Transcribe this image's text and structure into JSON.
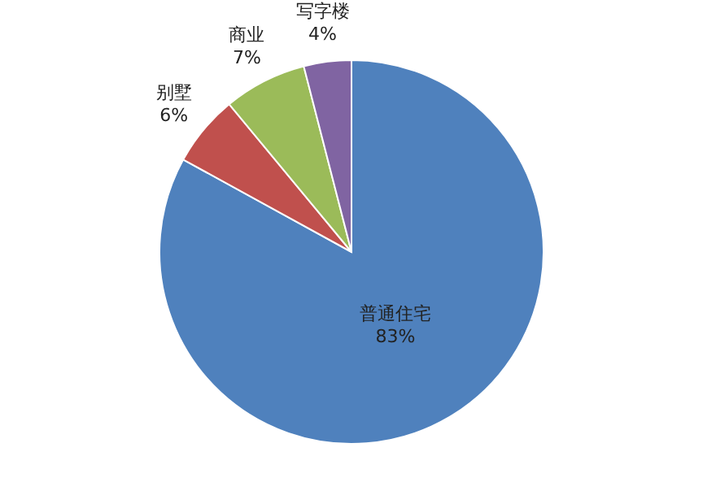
{
  "chart_data": {
    "type": "pie",
    "categories": [
      "普通住宅",
      "别墅",
      "商业",
      "写字楼"
    ],
    "values": [
      83,
      6,
      7,
      4
    ],
    "colors": [
      "#4f81bd",
      "#c0504d",
      "#9bbb59",
      "#8064a2"
    ],
    "value_labels": [
      "83%",
      "6%",
      "7%",
      "4%"
    ],
    "legend": false
  }
}
